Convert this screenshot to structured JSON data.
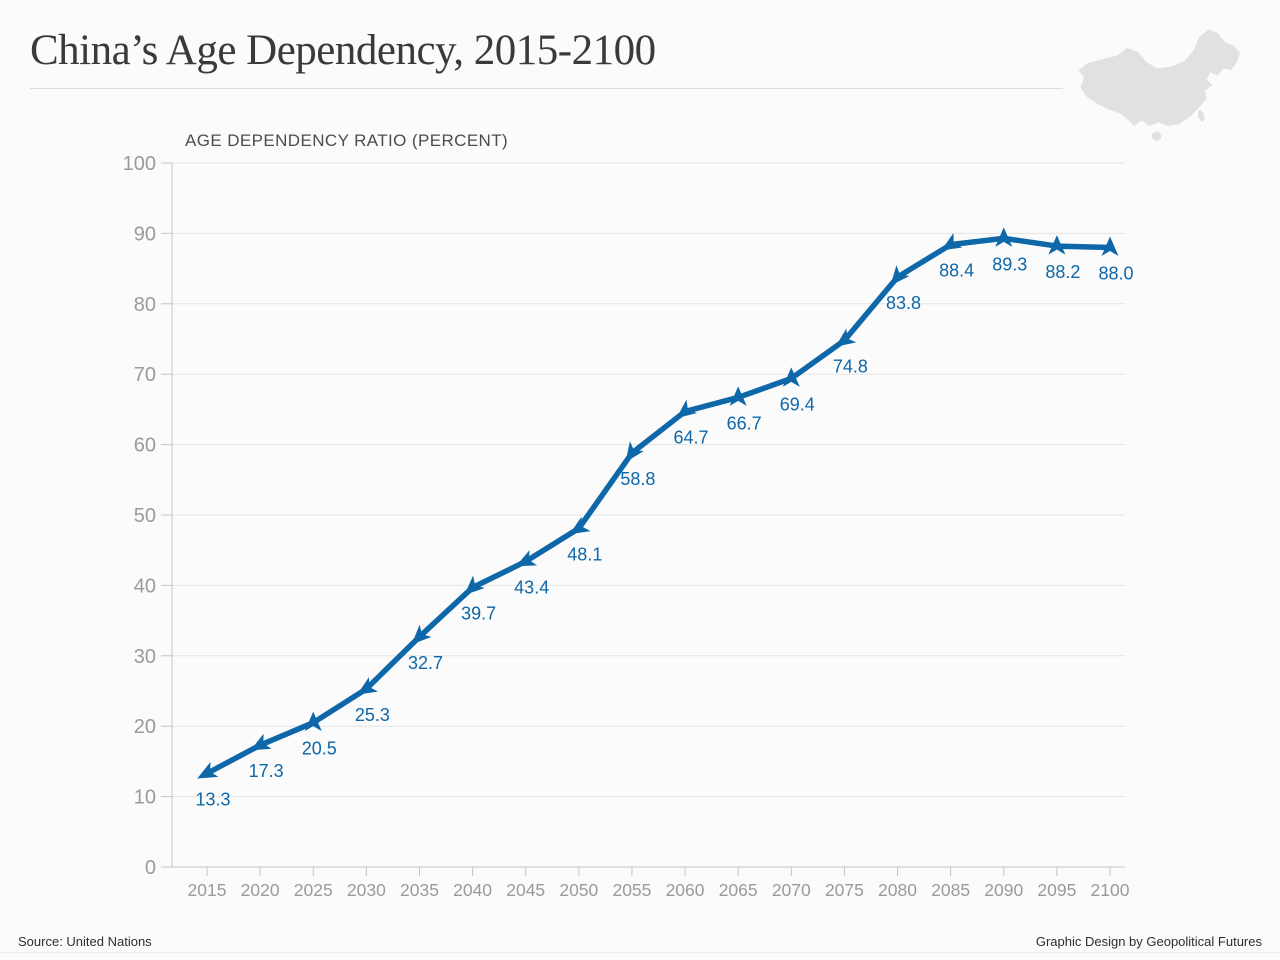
{
  "header": {
    "title": "China’s Age Dependency, 2015-2100"
  },
  "footer": {
    "source": "Source: United Nations",
    "credit": "Graphic Design by Geopolitical Futures"
  },
  "icons": {
    "china_map": "china-map-silhouette"
  },
  "chart_data": {
    "type": "line",
    "title": "AGE DEPENDENCY RATIO (PERCENT)",
    "x": [
      2015,
      2020,
      2025,
      2030,
      2035,
      2040,
      2045,
      2050,
      2055,
      2060,
      2065,
      2070,
      2075,
      2080,
      2085,
      2090,
      2095,
      2100
    ],
    "values": [
      13.3,
      17.3,
      20.5,
      25.3,
      32.7,
      39.7,
      43.4,
      48.1,
      58.8,
      64.7,
      66.7,
      69.4,
      74.8,
      83.8,
      88.4,
      89.3,
      88.2,
      88.0
    ],
    "value_labels": [
      "13.3",
      "17.3",
      "20.5",
      "25.3",
      "32.7",
      "39.7",
      "43.4",
      "48.1",
      "58.8",
      "64.7",
      "66.7",
      "69.4",
      "74.8",
      "83.8",
      "88.4",
      "89.3",
      "88.2",
      "88.0"
    ],
    "ylim": [
      0,
      100
    ],
    "yticks": [
      0,
      10,
      20,
      30,
      40,
      50,
      60,
      70,
      80,
      90,
      100
    ],
    "grid": true,
    "legend": "none",
    "marker": "triangle-arrow",
    "colors": {
      "line": "#0d67a9",
      "value_label": "#0d67a9",
      "axis_text": "#9a9a9a",
      "grid": "#e4e4e4",
      "axis_line": "#c4c4c4",
      "map": "#e1e1e1"
    }
  }
}
